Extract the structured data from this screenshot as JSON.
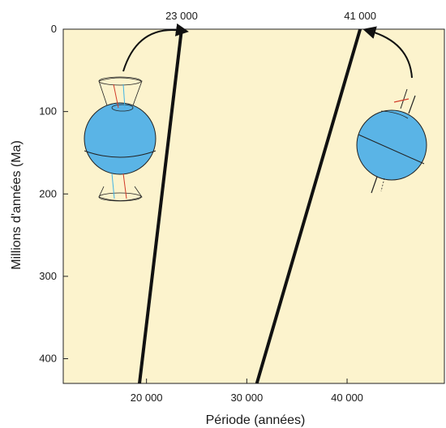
{
  "chart_data": {
    "type": "line",
    "title": "",
    "xlabel": "Période (années)",
    "ylabel": "Millions d'années (Ma)",
    "xlim": [
      11700,
      49700
    ],
    "ylim": [
      0,
      430
    ],
    "y_inverted": true,
    "x_ticks": [
      {
        "value": 20000,
        "label": "20 000"
      },
      {
        "value": 30000,
        "label": "30 000"
      },
      {
        "value": 40000,
        "label": "40 000"
      }
    ],
    "y_ticks": [
      {
        "value": 0,
        "label": "0"
      },
      {
        "value": 100,
        "label": "100"
      },
      {
        "value": 200,
        "label": "200"
      },
      {
        "value": 300,
        "label": "300"
      },
      {
        "value": 400,
        "label": "400"
      }
    ],
    "series": [
      {
        "label": "23 000",
        "color": "#111111",
        "points": [
          {
            "x": 23500,
            "y": 0
          },
          {
            "x": 19300,
            "y": 430
          }
        ]
      },
      {
        "label": "41 000",
        "color": "#111111",
        "points": [
          {
            "x": 41300,
            "y": 0
          },
          {
            "x": 31000,
            "y": 430
          }
        ]
      }
    ],
    "background_color": "#fcf3cd",
    "globe_color": "#5ab4e6",
    "icons": [
      "precession-globe-icon",
      "obliquity-globe-icon",
      "curved-arrow-icon"
    ],
    "grid": false
  }
}
